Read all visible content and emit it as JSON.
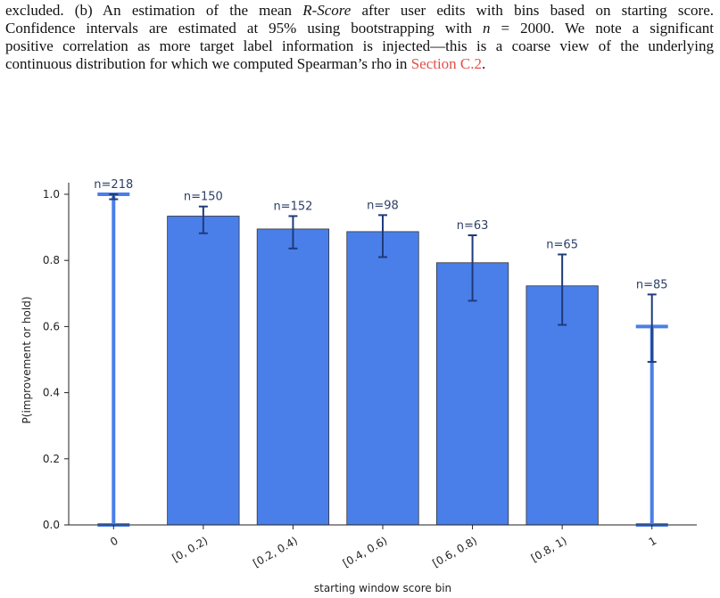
{
  "caption": {
    "lines": [
      [
        "excluded. (b) An estimation of the mean ",
        "R-Score",
        " after user edits with bins based on starting score."
      ],
      [
        "Confidence intervals are estimated at 95% using bootstrapping with ",
        "n",
        " = 2000. We note a significant"
      ],
      [
        "positive correlation as more target label information is injected—this is a coarse view of the underlying"
      ],
      [
        "continuous distribution for which we computed Spearman’s rho in ",
        "Section C.2",
        "."
      ]
    ]
  },
  "chart_data": {
    "type": "bar",
    "categories": [
      "0",
      "[0, 0.2)",
      "[0.2, 0.4)",
      "[0.4, 0.6)",
      "[0.6, 0.8)",
      "[0.8, 1)",
      "1"
    ],
    "values": [
      1.0,
      0.934,
      0.895,
      0.887,
      0.793,
      0.723,
      0.6
    ],
    "error_low": [
      0.985,
      0.882,
      0.836,
      0.81,
      0.678,
      0.605,
      0.493
    ],
    "error_high": [
      1.0,
      0.963,
      0.934,
      0.937,
      0.876,
      0.818,
      0.697
    ],
    "n_labels": [
      "n=218",
      "n=150",
      "n=152",
      "n=98",
      "n=63",
      "n=65",
      "n=85"
    ],
    "color": "#4a7fe9",
    "error_color": "#1f3b7a",
    "xlabel": "starting window score bin",
    "ylabel": "P(improvement or hold)",
    "ylim": [
      0,
      1.035
    ],
    "yticks": [
      {
        "value": 0,
        "label": "0.0"
      },
      {
        "value": 0.2,
        "label": "0.2"
      },
      {
        "value": 0.4,
        "label": "0.4"
      },
      {
        "value": 0.6,
        "label": "0.6"
      },
      {
        "value": 0.8,
        "label": "0.8"
      },
      {
        "value": 1,
        "label": "1.0"
      }
    ]
  }
}
